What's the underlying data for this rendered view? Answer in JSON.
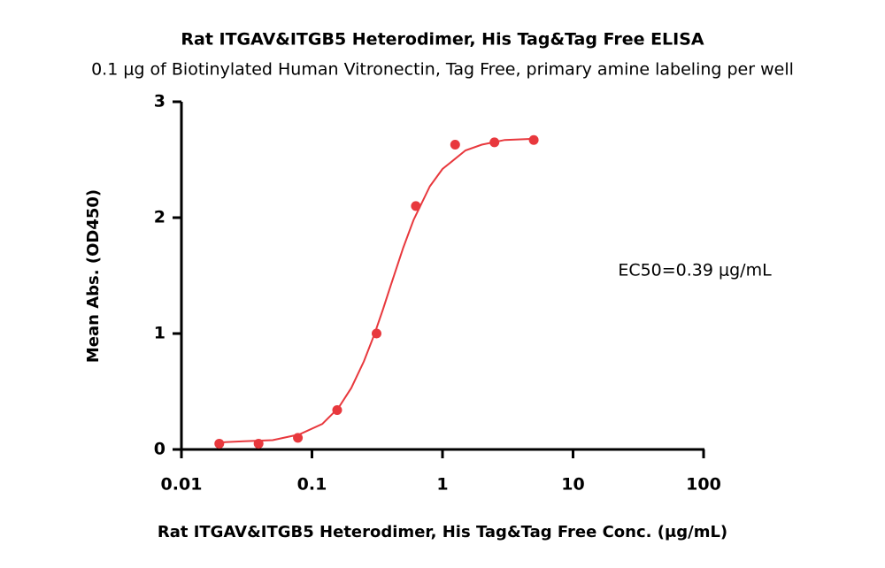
{
  "chart_data": {
    "type": "scatter",
    "title": "Rat ITGAV&ITGB5 Heterodimer, His Tag&Tag Free ELISA",
    "subtitle": "0.1 μg of Biotinylated Human Vitronectin, Tag Free, primary amine labeling per well",
    "xlabel": "Rat ITGAV&ITGB5 Heterodimer, His Tag&Tag Free Conc. (μg/mL)",
    "ylabel": "Mean Abs. (OD450)",
    "annotation": "EC50=0.39 μg/mL",
    "xscale": "log",
    "x": [
      0.0195,
      0.039,
      0.078,
      0.156,
      0.3125,
      0.625,
      1.25,
      2.5,
      5
    ],
    "values": [
      0.05,
      0.05,
      0.1,
      0.34,
      1.0,
      2.1,
      2.63,
      2.65,
      2.67
    ],
    "color": "#e8383d",
    "curve": {
      "x": [
        0.0195,
        0.03,
        0.05,
        0.08,
        0.12,
        0.16,
        0.2,
        0.25,
        0.3,
        0.35,
        0.4,
        0.5,
        0.6,
        0.8,
        1,
        1.5,
        2,
        3,
        5
      ],
      "values": [
        0.06,
        0.07,
        0.08,
        0.13,
        0.22,
        0.36,
        0.53,
        0.76,
        0.99,
        1.21,
        1.41,
        1.74,
        1.98,
        2.27,
        2.42,
        2.58,
        2.63,
        2.67,
        2.68
      ]
    },
    "xlim": [
      0.01,
      100
    ],
    "xticks": [
      0.01,
      0.1,
      1,
      10,
      100
    ],
    "ylim": [
      0,
      3
    ],
    "yticks": [
      0,
      1,
      2,
      3
    ]
  }
}
